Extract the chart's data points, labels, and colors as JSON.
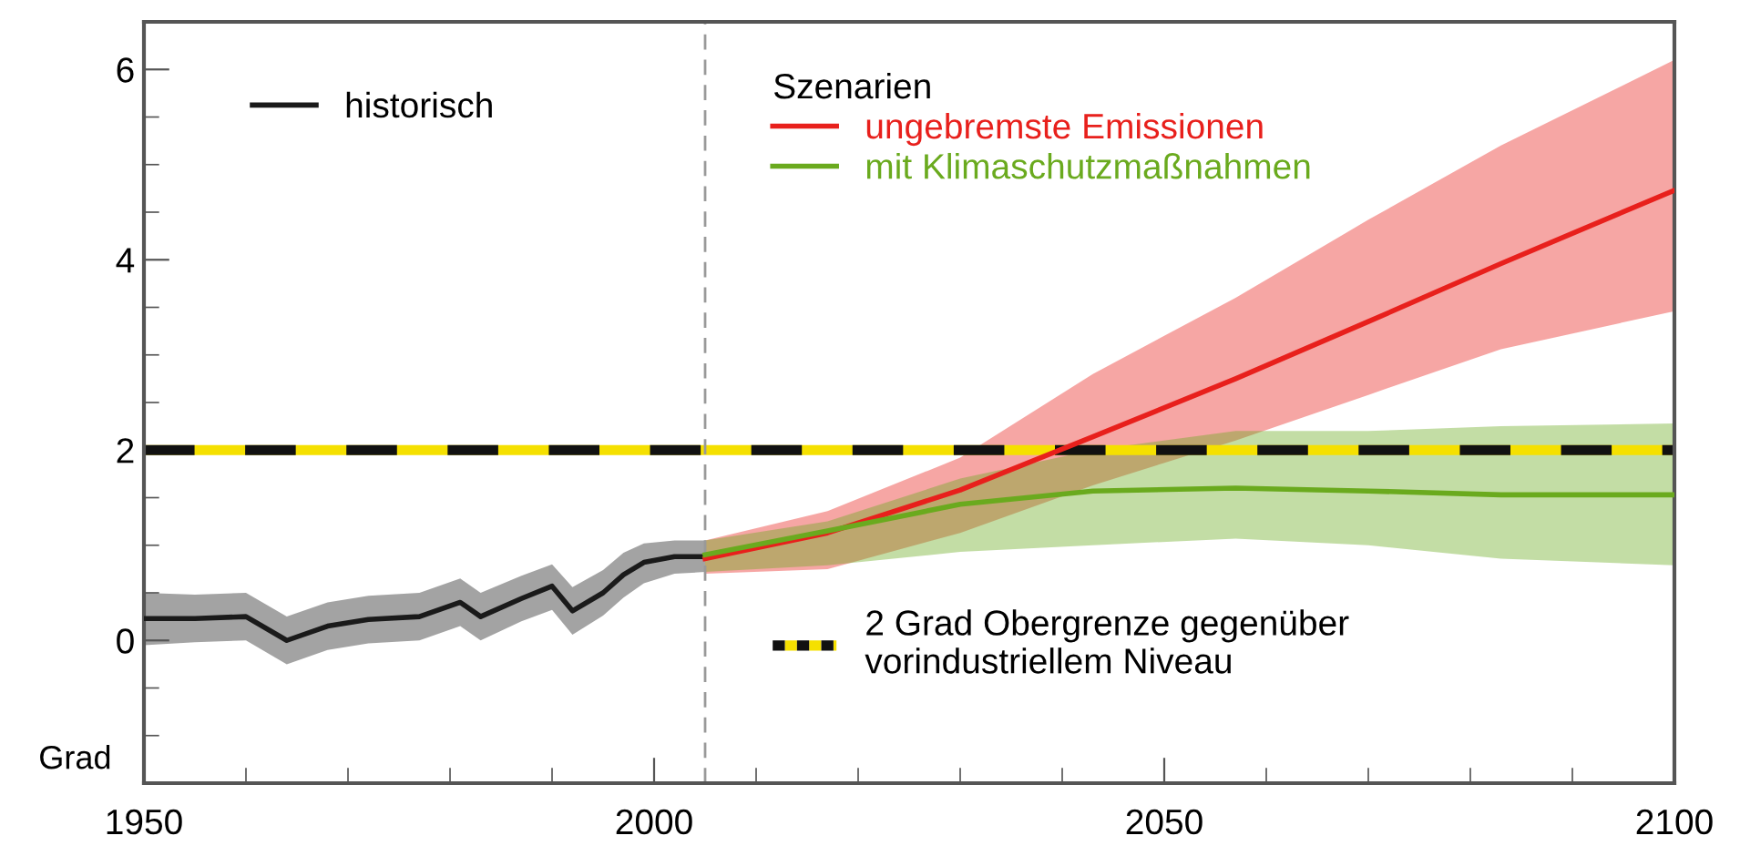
{
  "chart_data": {
    "type": "line",
    "ylabel": "Grad",
    "legend_title": "Szenarien",
    "xlim": [
      1950,
      2100
    ],
    "ylim": [
      -1.5,
      6.5
    ],
    "xticks": [
      1950,
      {
        "value": 1960,
        "label": null
      },
      {
        "value": 1970,
        "label": null
      },
      {
        "value": 1980,
        "label": null
      },
      {
        "value": 1990,
        "label": null
      },
      2000,
      {
        "value": 2010,
        "label": null
      },
      {
        "value": 2020,
        "label": null
      },
      {
        "value": 2030,
        "label": null
      },
      {
        "value": 2040,
        "label": null
      },
      2050,
      {
        "value": 2060,
        "label": null
      },
      {
        "value": 2070,
        "label": null
      },
      {
        "value": 2080,
        "label": null
      },
      {
        "value": 2090,
        "label": null
      },
      2100
    ],
    "yticks": [
      {
        "value": -1,
        "label": null
      },
      {
        "value": -0.5,
        "label": null
      },
      0,
      {
        "value": 0.5,
        "label": null
      },
      {
        "value": 1,
        "label": null
      },
      {
        "value": 1.5,
        "label": null
      },
      2,
      {
        "value": 2.5,
        "label": null
      },
      {
        "value": 3,
        "label": null
      },
      {
        "value": 3.5,
        "label": null
      },
      4,
      {
        "value": 4.5,
        "label": null
      },
      {
        "value": 5,
        "label": null
      },
      {
        "value": 5.5,
        "label": null
      },
      6
    ],
    "grid": false,
    "legend": "top left",
    "marker": "none",
    "line_style": "solid",
    "series": [
      {
        "name": "historisch",
        "color": "#1a1a1a",
        "x": [
          1950,
          1955,
          1960,
          1964,
          1968,
          1972,
          1977,
          1981,
          1983,
          1987,
          1990,
          1992,
          1995,
          1997,
          1999,
          2002,
          2005
        ],
        "values": [
          0.23,
          0.23,
          0.25,
          0.0,
          0.15,
          0.22,
          0.25,
          0.4,
          0.25,
          0.44,
          0.57,
          0.31,
          0.5,
          0.69,
          0.82,
          0.88,
          0.88
        ],
        "lower": [
          -0.05,
          -0.02,
          0.0,
          -0.25,
          -0.1,
          -0.03,
          0.0,
          0.15,
          0.0,
          0.2,
          0.32,
          0.06,
          0.26,
          0.45,
          0.6,
          0.7,
          0.72
        ],
        "upper": [
          0.5,
          0.48,
          0.5,
          0.25,
          0.4,
          0.47,
          0.5,
          0.65,
          0.5,
          0.68,
          0.8,
          0.56,
          0.74,
          0.92,
          1.02,
          1.05,
          1.05
        ]
      },
      {
        "name": "ungebremste Emissionen",
        "color": "#e8201c",
        "x": [
          2005,
          2017,
          2030,
          2043,
          2057,
          2070,
          2083,
          2100
        ],
        "values": [
          0.86,
          1.13,
          1.58,
          2.14,
          2.75,
          3.35,
          3.96,
          4.73
        ],
        "lower": [
          0.7,
          0.75,
          1.13,
          1.63,
          2.1,
          2.58,
          3.06,
          3.46
        ],
        "upper": [
          1.05,
          1.36,
          1.92,
          2.8,
          3.6,
          4.42,
          5.2,
          6.1
        ]
      },
      {
        "name": "mit Klimaschutzmaßnahmen",
        "color": "#6aaa1e",
        "x": [
          2005,
          2017,
          2030,
          2043,
          2057,
          2070,
          2083,
          2100
        ],
        "values": [
          0.9,
          1.15,
          1.43,
          1.57,
          1.6,
          1.57,
          1.53,
          1.53
        ],
        "lower": [
          0.72,
          0.79,
          0.93,
          1.0,
          1.07,
          1.0,
          0.86,
          0.79
        ],
        "upper": [
          1.05,
          1.25,
          1.7,
          2.0,
          2.2,
          2.2,
          2.25,
          2.28
        ]
      }
    ],
    "ref_lines": [
      {
        "axis": "y",
        "value": 2,
        "label": null,
        "color": "#f5e000",
        "line_style": "solid"
      },
      {
        "axis": "y",
        "value": 2,
        "label": "2 Grad Obergrenze gegenüber\nvorindustriellem Niveau",
        "color": "#111111",
        "line_style": "dashed"
      },
      {
        "axis": "x",
        "value": 2005,
        "label": null,
        "color": "#999999",
        "line_style": "dashed"
      }
    ]
  }
}
